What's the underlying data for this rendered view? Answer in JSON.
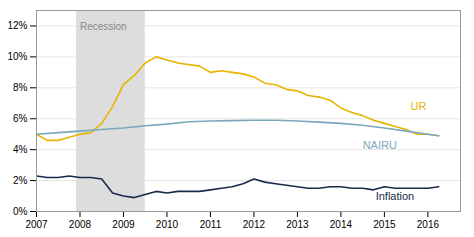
{
  "chart_data": {
    "type": "line",
    "xlim": [
      2007,
      2016.75
    ],
    "xticks": [
      2007,
      2008,
      2009,
      2010,
      2011,
      2012,
      2013,
      2014,
      2015,
      2016
    ],
    "ylim": [
      0,
      0.13
    ],
    "yticks": [
      {
        "value": 0.0,
        "label": "0%"
      },
      {
        "value": 0.02,
        "label": "2%"
      },
      {
        "value": 0.04,
        "label": "4%"
      },
      {
        "value": 0.06,
        "label": "6%"
      },
      {
        "value": 0.08,
        "label": "8%"
      },
      {
        "value": 0.1,
        "label": "10%"
      },
      {
        "value": 0.12,
        "label": "12%"
      }
    ],
    "grid": true,
    "shaded_regions": [
      {
        "start": 2007.917,
        "end": 2009.5,
        "color": "#DDDDDD"
      }
    ],
    "annotations": [
      {
        "text": "Recession",
        "x": 2008.0,
        "y": 0.122
      },
      {
        "text": "UR",
        "x": 2015.6,
        "y": 0.068
      },
      {
        "text": "NAIRU",
        "x": 2014.5,
        "y": 0.043
      },
      {
        "text": "Inflation",
        "x": 2014.8,
        "y": 0.01
      }
    ],
    "series": [
      {
        "name": "UR",
        "color": "#E8B400",
        "x": [
          2007.0,
          2007.25,
          2007.5,
          2007.75,
          2008.0,
          2008.25,
          2008.5,
          2008.75,
          2009.0,
          2009.25,
          2009.5,
          2009.75,
          2010.0,
          2010.25,
          2010.5,
          2010.75,
          2011.0,
          2011.25,
          2011.5,
          2011.75,
          2012.0,
          2012.25,
          2012.5,
          2012.75,
          2013.0,
          2013.25,
          2013.5,
          2013.75,
          2014.0,
          2014.25,
          2014.5,
          2014.75,
          2015.0,
          2015.25,
          2015.5,
          2015.75,
          2016.0,
          2016.25
        ],
        "values": [
          0.05,
          0.046,
          0.046,
          0.048,
          0.05,
          0.051,
          0.057,
          0.068,
          0.082,
          0.088,
          0.096,
          0.1,
          0.098,
          0.096,
          0.095,
          0.094,
          0.09,
          0.091,
          0.09,
          0.089,
          0.087,
          0.083,
          0.082,
          0.079,
          0.078,
          0.075,
          0.074,
          0.072,
          0.067,
          0.064,
          0.062,
          0.059,
          0.057,
          0.055,
          0.053,
          0.05,
          0.05,
          0.049
        ]
      },
      {
        "name": "NAIRU",
        "color": "#7BA7BC",
        "x": [
          2007.0,
          2007.5,
          2008.0,
          2008.5,
          2009.0,
          2009.5,
          2010.0,
          2010.5,
          2011.0,
          2011.5,
          2012.0,
          2012.5,
          2013.0,
          2013.5,
          2014.0,
          2014.5,
          2015.0,
          2015.5,
          2016.0,
          2016.25
        ],
        "values": [
          0.05,
          0.051,
          0.052,
          0.053,
          0.054,
          0.0555,
          0.0565,
          0.058,
          0.0585,
          0.0588,
          0.059,
          0.059,
          0.0585,
          0.0578,
          0.057,
          0.0558,
          0.054,
          0.052,
          0.05,
          0.049
        ]
      },
      {
        "name": "Inflation",
        "color": "#1A2A4A",
        "x": [
          2007.0,
          2007.25,
          2007.5,
          2007.75,
          2008.0,
          2008.25,
          2008.5,
          2008.75,
          2009.0,
          2009.25,
          2009.5,
          2009.75,
          2010.0,
          2010.25,
          2010.5,
          2010.75,
          2011.0,
          2011.25,
          2011.5,
          2011.75,
          2012.0,
          2012.25,
          2012.5,
          2012.75,
          2013.0,
          2013.25,
          2013.5,
          2013.75,
          2014.0,
          2014.25,
          2014.5,
          2014.75,
          2015.0,
          2015.25,
          2015.5,
          2015.75,
          2016.0,
          2016.25
        ],
        "values": [
          0.023,
          0.022,
          0.022,
          0.023,
          0.022,
          0.022,
          0.021,
          0.012,
          0.01,
          0.009,
          0.011,
          0.013,
          0.012,
          0.013,
          0.013,
          0.013,
          0.014,
          0.015,
          0.016,
          0.018,
          0.021,
          0.019,
          0.018,
          0.017,
          0.016,
          0.015,
          0.015,
          0.016,
          0.016,
          0.015,
          0.015,
          0.014,
          0.016,
          0.015,
          0.015,
          0.015,
          0.015,
          0.016
        ]
      }
    ]
  }
}
